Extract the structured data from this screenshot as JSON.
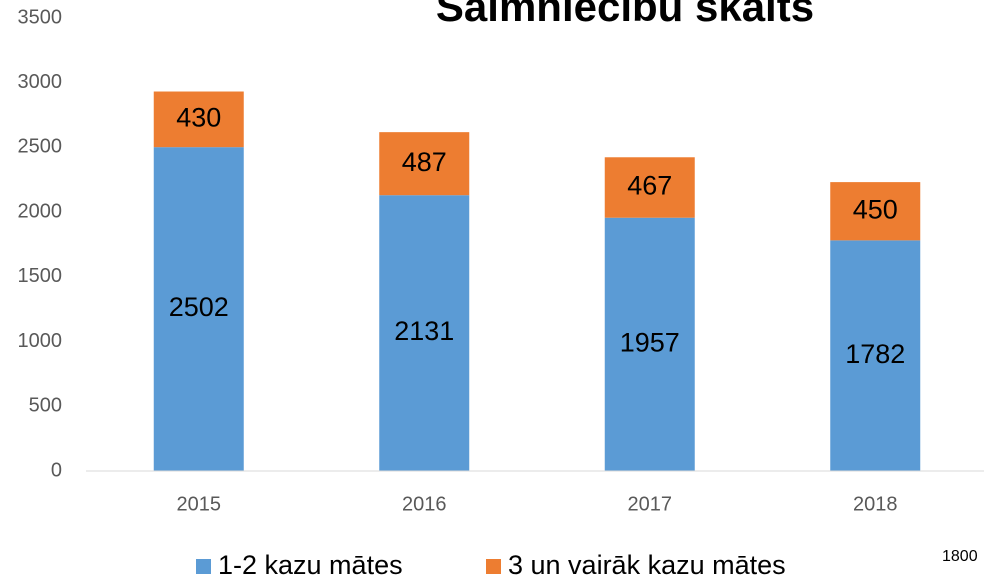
{
  "chart_data": {
    "type": "stacked_bar",
    "title": "Saimniecību skaits",
    "categories": [
      "2015",
      "2016",
      "2017",
      "2018"
    ],
    "series": [
      {
        "name": "1-2 kazu mātes",
        "color": "#5b9bd5",
        "values": [
          2502,
          2131,
          1957,
          1782
        ]
      },
      {
        "name": "3 un vairāk kazu mātes",
        "color": "#ed7d31",
        "values": [
          430,
          487,
          467,
          450
        ]
      }
    ],
    "ylim": [
      0,
      3500
    ],
    "yticks": [
      0,
      500,
      1000,
      1500,
      2000,
      2500,
      3000,
      3500
    ],
    "grid": false,
    "legend": "bottom",
    "annotation": "1800"
  }
}
